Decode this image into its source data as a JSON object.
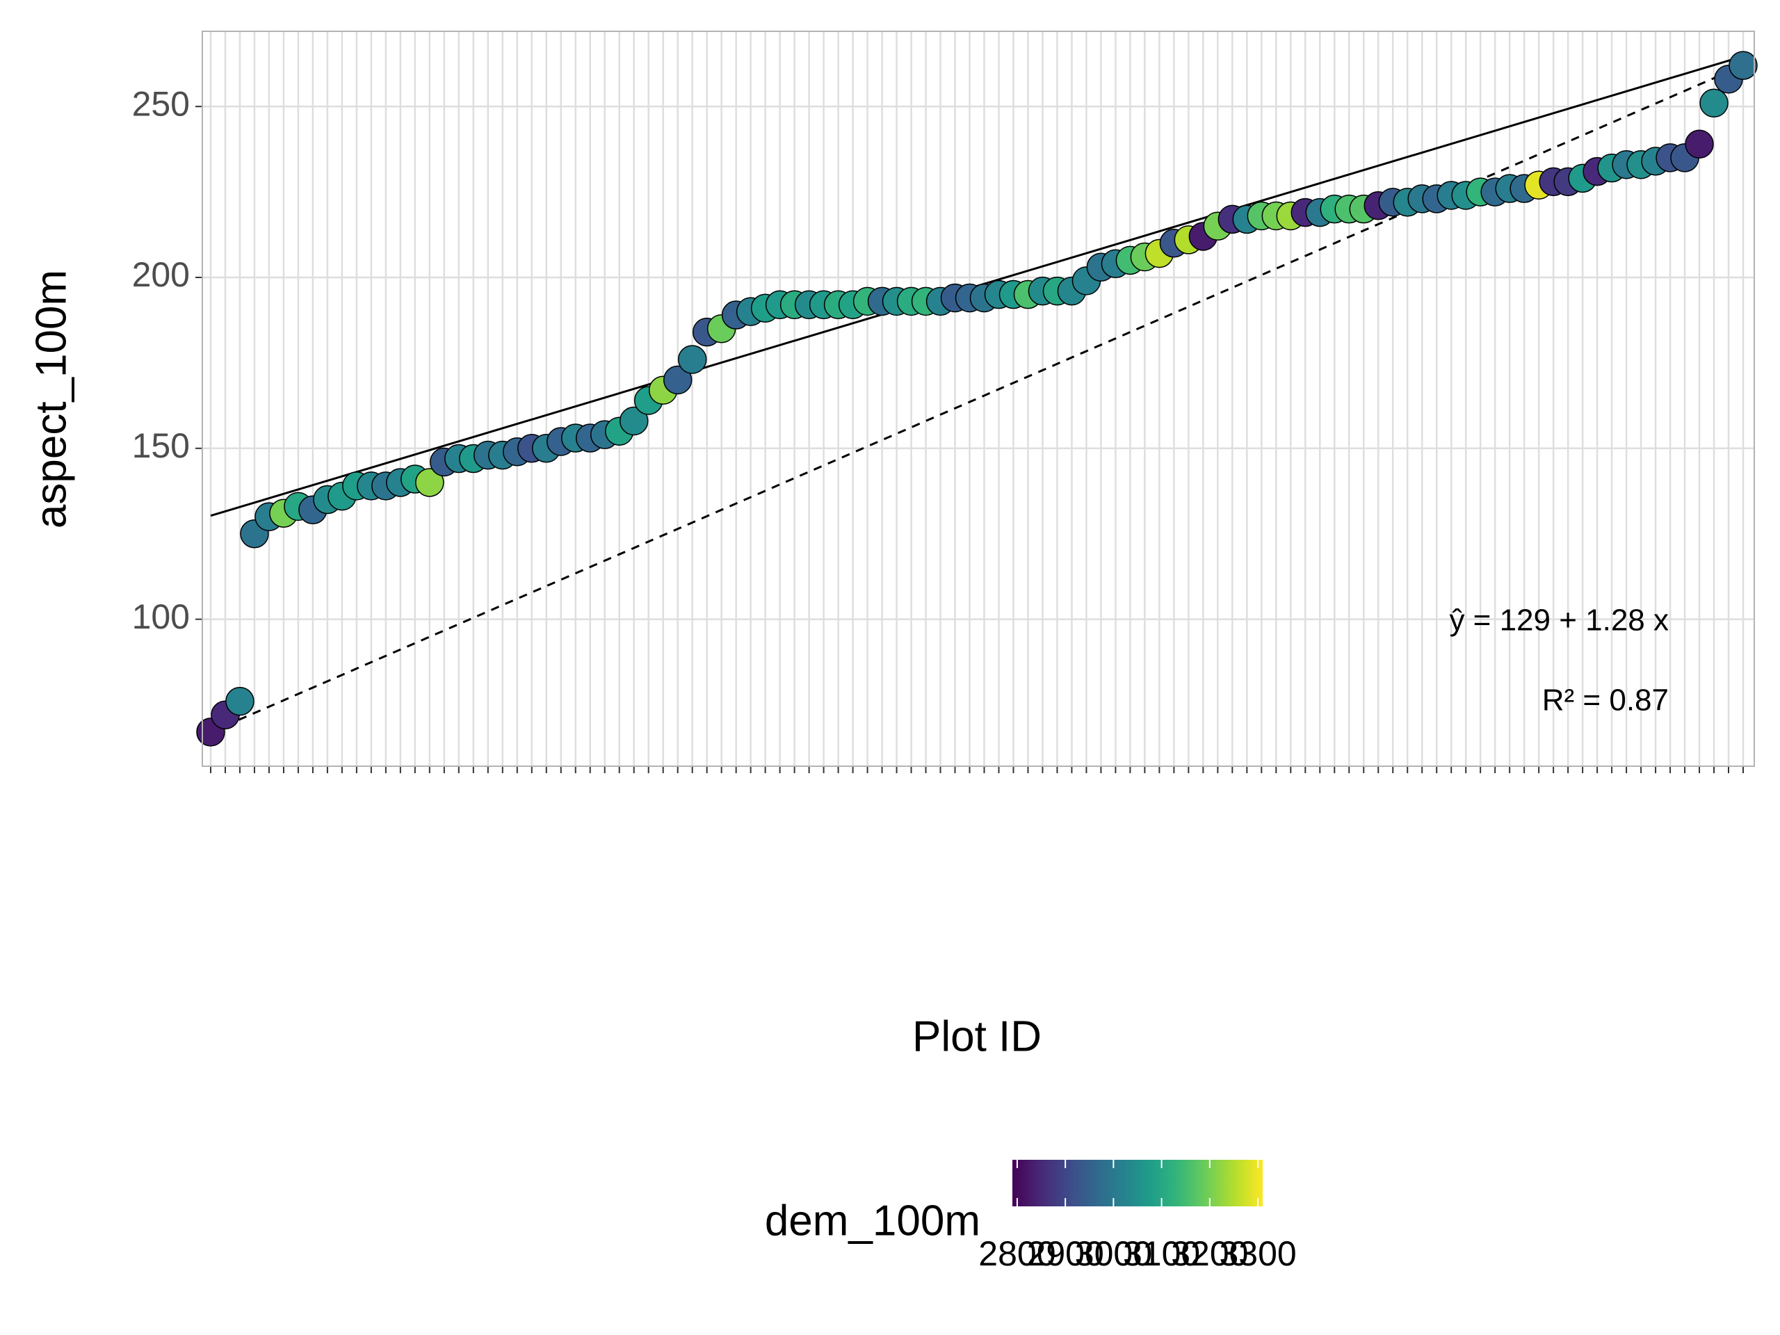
{
  "chart_data": {
    "type": "scatter",
    "x_label": "Plot ID",
    "y_label": "aspect_100m",
    "categories": [
      null,
      null,
      null,
      null,
      null,
      null,
      null,
      null,
      null,
      null,
      null,
      null,
      null,
      null,
      null,
      null,
      null,
      null,
      null,
      null,
      null,
      null,
      null,
      null,
      null,
      null,
      null,
      null,
      null,
      null,
      null,
      null,
      null,
      null,
      null,
      null,
      null,
      null,
      null,
      null,
      null,
      null,
      null,
      null,
      null,
      null,
      null,
      null,
      null,
      null,
      null,
      null,
      null,
      null,
      null,
      null,
      null,
      null,
      null,
      null,
      null,
      null,
      null,
      null,
      null,
      null,
      null,
      null,
      null,
      null,
      null,
      null,
      null,
      null,
      null,
      null,
      null,
      null,
      null,
      null,
      null,
      null,
      null,
      null,
      null,
      null,
      null,
      null,
      null,
      null,
      null,
      null,
      null,
      null,
      null,
      null,
      null,
      null,
      null,
      null,
      null,
      null,
      null,
      null,
      null,
      null
    ],
    "values": [
      67,
      72,
      76,
      125,
      130,
      131,
      133,
      132,
      135,
      136,
      139,
      139,
      139,
      140,
      141,
      140,
      146,
      147,
      147,
      148,
      148,
      149,
      150,
      150,
      152,
      153,
      153,
      154,
      155,
      158,
      164,
      167,
      170,
      176,
      184,
      185,
      189,
      190,
      191,
      192,
      192,
      192,
      192,
      192,
      192,
      193,
      193,
      193,
      193,
      193,
      193,
      194,
      194,
      194,
      195,
      195,
      195,
      196,
      196,
      196,
      199,
      203,
      204,
      205,
      206,
      207,
      210,
      211,
      212,
      215,
      217,
      217,
      218,
      218,
      218,
      219,
      219,
      220,
      220,
      220,
      221,
      222,
      222,
      223,
      223,
      224,
      224,
      225,
      225,
      226,
      226,
      227,
      228,
      228,
      229,
      231,
      232,
      233,
      233,
      234,
      235,
      235,
      239,
      251,
      258,
      262
    ],
    "color_values": [
      2830,
      2850,
      3020,
      2990,
      3010,
      3200,
      3100,
      2960,
      3040,
      3070,
      3080,
      3030,
      2990,
      3020,
      3090,
      3220,
      2940,
      3020,
      3070,
      2990,
      3010,
      2960,
      2920,
      3010,
      2950,
      3020,
      2960,
      2990,
      3090,
      3040,
      3080,
      3220,
      2950,
      3010,
      2930,
      3190,
      2950,
      3020,
      3080,
      3070,
      3110,
      3040,
      3070,
      3110,
      3090,
      3130,
      2970,
      3050,
      3110,
      3130,
      3020,
      2940,
      2960,
      2990,
      3030,
      3070,
      3160,
      3040,
      3100,
      3030,
      3020,
      2990,
      3010,
      3150,
      3190,
      3260,
      2930,
      3250,
      2830,
      3200,
      2860,
      3020,
      3170,
      3200,
      3230,
      2850,
      3000,
      3120,
      3160,
      3170,
      2840,
      2940,
      3030,
      3000,
      2960,
      3010,
      3050,
      3130,
      2970,
      3010,
      2970,
      3290,
      2870,
      2880,
      3070,
      2850,
      3060,
      3000,
      3050,
      3020,
      2920,
      2930,
      2830,
      3040,
      2940,
      2980
    ],
    "color_label": "dem_100m",
    "color_lim": [
      2790,
      3310
    ],
    "color_ticks": [
      2800,
      2900,
      3000,
      3100,
      3200,
      3300
    ],
    "ylim": [
      57,
      272
    ],
    "yticks": [
      100,
      150,
      200,
      250
    ],
    "grid": true,
    "fit": {
      "intercept": 129,
      "slope": 1.28
    },
    "reference_line": {
      "x": [
        1,
        106
      ],
      "y": [
        67,
        262
      ]
    },
    "equation": "ŷ = 129 + 1.28 x",
    "r2_label": "R² = 0.87"
  }
}
